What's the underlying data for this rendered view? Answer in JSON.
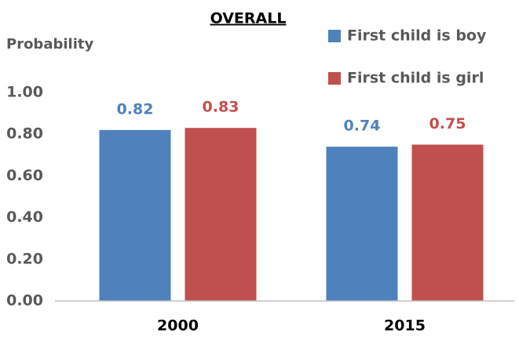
{
  "chart_data": {
    "type": "bar",
    "title": "OVERALL",
    "y_label": "Probability",
    "categories": [
      "2000",
      "2015"
    ],
    "series": [
      {
        "name": "First child is boy",
        "color": "#4f81bd",
        "values": [
          0.82,
          0.74
        ]
      },
      {
        "name": "First child is girl",
        "color": "#c0504d",
        "values": [
          0.83,
          0.75
        ]
      }
    ],
    "ylim": [
      0,
      1
    ],
    "yticks": [
      {
        "value": 0,
        "label": "0.00"
      },
      {
        "value": 0.2,
        "label": "0.20"
      },
      {
        "value": 0.4,
        "label": "0.40"
      },
      {
        "value": 0.6,
        "label": "0.60"
      },
      {
        "value": 0.8,
        "label": "0.80"
      },
      {
        "value": 1,
        "label": "1.00"
      }
    ],
    "grid": false,
    "legend": "upper right"
  }
}
